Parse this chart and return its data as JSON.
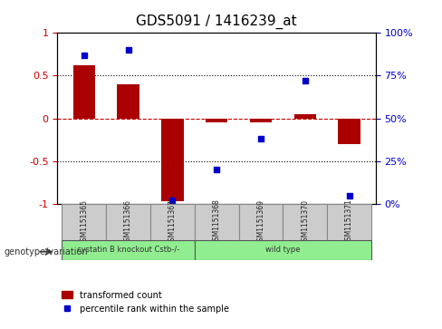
{
  "title": "GDS5091 / 1416239_at",
  "samples": [
    "GSM1151365",
    "GSM1151366",
    "GSM1151367",
    "GSM1151368",
    "GSM1151369",
    "GSM1151370",
    "GSM1151371"
  ],
  "bar_values": [
    0.62,
    0.4,
    -0.97,
    -0.05,
    -0.05,
    0.05,
    -0.3
  ],
  "percentile_values": [
    87,
    90,
    2,
    20,
    38,
    72,
    5
  ],
  "ylim_left": [
    -1,
    1
  ],
  "ylim_right": [
    0,
    100
  ],
  "yticks_left": [
    -1,
    -0.5,
    0,
    0.5,
    1
  ],
  "yticks_right": [
    0,
    25,
    50,
    75,
    100
  ],
  "ytick_labels_left": [
    "-1",
    "-0.5",
    "0",
    "0.5",
    "1"
  ],
  "ytick_labels_right": [
    "0%",
    "25%",
    "50%",
    "75%",
    "100%"
  ],
  "bar_color": "#aa0000",
  "scatter_color": "#0000cc",
  "hline_y": 0,
  "hline_color": "#cc0000",
  "dotted_lines": [
    -0.5,
    0.5
  ],
  "dotted_color": "#000000",
  "group1_label": "cystatin B knockout Cstb-/-",
  "group2_label": "wild type",
  "group1_color": "#90ee90",
  "group2_color": "#90ee90",
  "group1_indices": [
    0,
    1,
    2
  ],
  "group2_indices": [
    3,
    4,
    5,
    6
  ],
  "genotype_label": "genotype/variation",
  "legend_bar_label": "transformed count",
  "legend_scatter_label": "percentile rank within the sample",
  "bg_color": "#ffffff",
  "plot_bg_color": "#ffffff",
  "xlabel_color": "#333333",
  "left_axis_color": "#cc0000",
  "right_axis_color": "#0000cc",
  "bar_width": 0.5,
  "figsize": [
    4.88,
    3.63
  ],
  "dpi": 100
}
